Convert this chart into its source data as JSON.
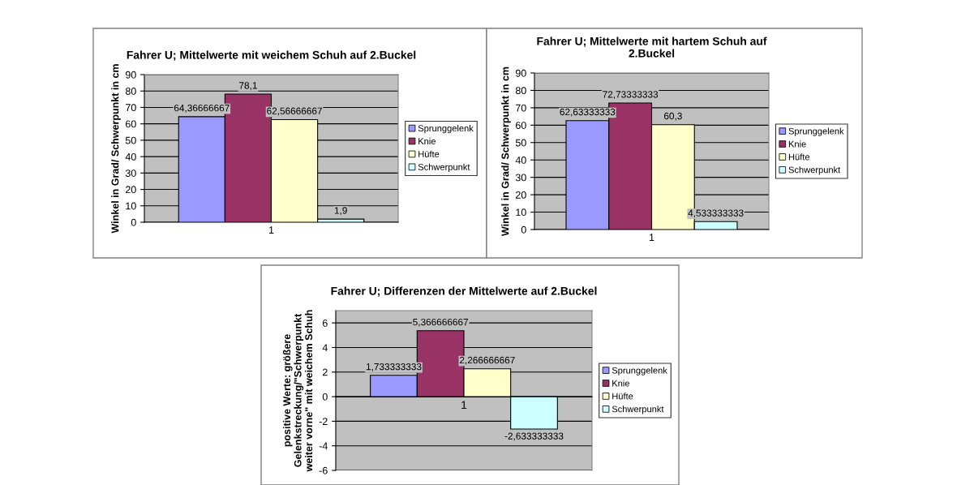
{
  "chart_data": [
    {
      "type": "bar",
      "title": "Fahrer U; Mittelwerte mit weichem Schuh auf 2.Buckel",
      "ylabel": "Winkel in Grad/ Schwerpunkt in cm",
      "categories": [
        "1"
      ],
      "ylim": [
        0,
        90
      ],
      "yticks": [
        0,
        10,
        20,
        30,
        40,
        50,
        60,
        70,
        80,
        90
      ],
      "grid": "y",
      "legend": "right",
      "series": [
        {
          "name": "Sprunggelenk",
          "color": "#9999ff",
          "values": [
            64.36666667
          ],
          "value_labels": [
            "64,36666667"
          ]
        },
        {
          "name": "Knie",
          "color": "#993366",
          "values": [
            78.1
          ],
          "value_labels": [
            "78,1"
          ]
        },
        {
          "name": "Hüfte",
          "color": "#ffffcc",
          "values": [
            62.56666667
          ],
          "value_labels": [
            "62,56666667"
          ]
        },
        {
          "name": "Schwerpunkt",
          "color": "#ccffff",
          "values": [
            1.9
          ],
          "value_labels": [
            "1,9"
          ]
        }
      ]
    },
    {
      "type": "bar",
      "title": "Fahrer U; Mittelwerte mit hartem Schuh auf\n2.Buckel",
      "ylabel": "Winkel in Grad/ Schwerpunkt in cm",
      "categories": [
        "1"
      ],
      "ylim": [
        0,
        90
      ],
      "yticks": [
        0,
        10,
        20,
        30,
        40,
        50,
        60,
        70,
        80,
        90
      ],
      "grid": "y",
      "legend": "right",
      "series": [
        {
          "name": "Sprunggelenk",
          "color": "#9999ff",
          "values": [
            62.63333333
          ],
          "value_labels": [
            "62,63333333"
          ]
        },
        {
          "name": "Knie",
          "color": "#993366",
          "values": [
            72.73333333
          ],
          "value_labels": [
            "72,73333333"
          ]
        },
        {
          "name": "Hüfte",
          "color": "#ffffcc",
          "values": [
            60.3
          ],
          "value_labels": [
            "60,3"
          ]
        },
        {
          "name": "Schwerpunkt",
          "color": "#ccffff",
          "values": [
            4.533333333
          ],
          "value_labels": [
            "4,533333333"
          ]
        }
      ]
    },
    {
      "type": "bar",
      "title": "Fahrer U; Differenzen der Mittelwerte auf 2.Buckel",
      "ylabel": "positive Werte: größere\nGelenkstreckung/\"Schwerpunkt\nweiter vorne\" mit weichem Schuh",
      "categories": [
        "1"
      ],
      "ylim": [
        -6,
        7
      ],
      "yticks": [
        -6,
        -4,
        -2,
        0,
        2,
        4,
        6
      ],
      "grid": "y",
      "legend": "right",
      "series": [
        {
          "name": "Sprunggelenk",
          "color": "#9999ff",
          "values": [
            1.733333333
          ],
          "value_labels": [
            "1,733333333"
          ]
        },
        {
          "name": "Knie",
          "color": "#993366",
          "values": [
            5.366666667
          ],
          "value_labels": [
            "5,366666667"
          ]
        },
        {
          "name": "Hüfte",
          "color": "#ffffcc",
          "values": [
            2.266666667
          ],
          "value_labels": [
            "2,266666667"
          ]
        },
        {
          "name": "Schwerpunkt",
          "color": "#ccffff",
          "values": [
            -2.633333333
          ],
          "value_labels": [
            "-2,633333333"
          ]
        }
      ]
    }
  ]
}
